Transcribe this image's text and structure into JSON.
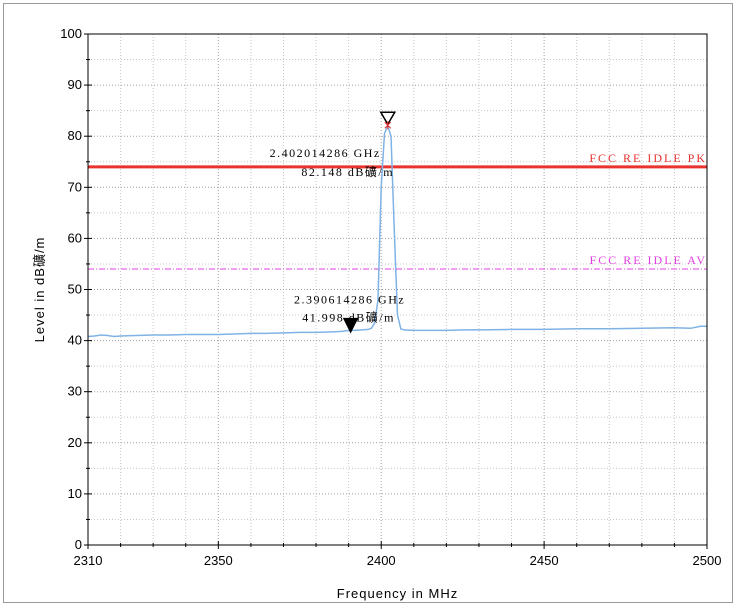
{
  "chart_data": {
    "type": "line",
    "xlabel": "Frequency in MHz",
    "ylabel": "Level in dB礦/m",
    "xlim": [
      2310,
      2500
    ],
    "ylim": [
      0,
      100
    ],
    "x_ticks": [
      2310,
      2350,
      2400,
      2450,
      2500
    ],
    "x_tick_labels": [
      "2310",
      "2350",
      "2400",
      "2450",
      "2500"
    ],
    "y_ticks": [
      0,
      10,
      20,
      30,
      40,
      50,
      60,
      70,
      80,
      90,
      100
    ],
    "y_tick_labels": [
      "0",
      "10",
      "20",
      "30",
      "40",
      "50",
      "60",
      "70",
      "80",
      "90",
      "100"
    ],
    "grid": true,
    "series": [
      {
        "color": "#7fb2e5",
        "x": [
          2310,
          2312,
          2314,
          2316,
          2318,
          2320,
          2325,
          2330,
          2335,
          2340,
          2345,
          2350,
          2355,
          2360,
          2365,
          2370,
          2375,
          2380,
          2385,
          2388,
          2390,
          2392,
          2394,
          2396,
          2397,
          2398,
          2399,
          2400,
          2401,
          2402,
          2403,
          2404,
          2405,
          2406,
          2407,
          2410,
          2415,
          2420,
          2425,
          2430,
          2440,
          2450,
          2460,
          2470,
          2480,
          2490,
          2495,
          2498,
          2500
        ],
        "y": [
          40.8,
          40.9,
          41.1,
          41.0,
          40.8,
          40.9,
          41.0,
          41.1,
          41.1,
          41.2,
          41.2,
          41.2,
          41.3,
          41.4,
          41.4,
          41.5,
          41.6,
          41.6,
          41.7,
          41.8,
          42.0,
          42.0,
          42.1,
          42.2,
          42.4,
          43.5,
          48.0,
          70.0,
          80.5,
          82.1,
          80.0,
          62.0,
          45.0,
          42.3,
          42.1,
          42.0,
          42.0,
          42.0,
          42.1,
          42.1,
          42.2,
          42.2,
          42.3,
          42.3,
          42.4,
          42.5,
          42.4,
          42.8,
          42.8
        ]
      }
    ],
    "limit_lines": [
      {
        "name": "FCC RE IDLE PK",
        "y": 74,
        "color": "#e8332e",
        "style": "solid"
      },
      {
        "name": "FCC RE IDLE AV",
        "y": 54,
        "color": "#e040e0",
        "style": "dashdot"
      }
    ],
    "markers": [
      {
        "x": 2402.014286,
        "y": 82.148,
        "freq_label": "2.402014286 GHz",
        "level_label": "82.148 dB礦/m",
        "symbol": "open-triangle-down"
      },
      {
        "x": 2390.614286,
        "y": 41.998,
        "freq_label": "2.390614286 GHz",
        "level_label": "41.998 dB礦/m",
        "symbol": "filled-triangle-down"
      }
    ]
  }
}
